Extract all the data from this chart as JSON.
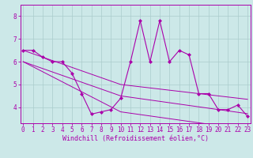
{
  "xlabel": "Windchill (Refroidissement éolien,°C)",
  "bg_color": "#cce8e8",
  "grid_color": "#aacccc",
  "line_color": "#aa00aa",
  "x_hours": [
    0,
    1,
    2,
    3,
    4,
    5,
    6,
    7,
    8,
    9,
    10,
    11,
    12,
    13,
    14,
    15,
    16,
    17,
    18,
    19,
    20,
    21,
    22,
    23
  ],
  "main_line": [
    6.5,
    6.5,
    6.2,
    6.0,
    6.0,
    5.5,
    4.6,
    3.7,
    3.8,
    3.9,
    4.4,
    6.0,
    7.8,
    6.0,
    7.8,
    6.0,
    6.5,
    6.3,
    4.6,
    4.6,
    3.9,
    3.9,
    4.1,
    3.6
  ],
  "trend1": [
    6.5,
    6.35,
    6.2,
    6.05,
    5.9,
    5.75,
    5.6,
    5.45,
    5.3,
    5.15,
    5.0,
    4.95,
    4.9,
    4.85,
    4.8,
    4.75,
    4.7,
    4.65,
    4.6,
    4.55,
    4.5,
    4.45,
    4.4,
    4.35
  ],
  "trend2": [
    6.0,
    5.85,
    5.7,
    5.55,
    5.4,
    5.25,
    5.1,
    4.95,
    4.8,
    4.65,
    4.5,
    4.44,
    4.38,
    4.32,
    4.26,
    4.2,
    4.14,
    4.08,
    4.02,
    3.96,
    3.9,
    3.84,
    3.78,
    3.72
  ],
  "trend3": [
    6.0,
    5.78,
    5.56,
    5.34,
    5.12,
    4.9,
    4.68,
    4.46,
    4.24,
    4.02,
    3.8,
    3.74,
    3.68,
    3.62,
    3.56,
    3.5,
    3.44,
    3.38,
    3.32,
    3.26,
    3.2,
    3.14,
    3.08,
    3.02
  ],
  "ylim": [
    3.3,
    8.5
  ],
  "xlim": [
    -0.3,
    23.3
  ],
  "yticks": [
    4,
    5,
    6,
    7,
    8
  ],
  "xticks": [
    0,
    1,
    2,
    3,
    4,
    5,
    6,
    7,
    8,
    9,
    10,
    11,
    12,
    13,
    14,
    15,
    16,
    17,
    18,
    19,
    20,
    21,
    22,
    23
  ],
  "xlabel_fontsize": 6.0,
  "tick_fontsize": 5.5
}
